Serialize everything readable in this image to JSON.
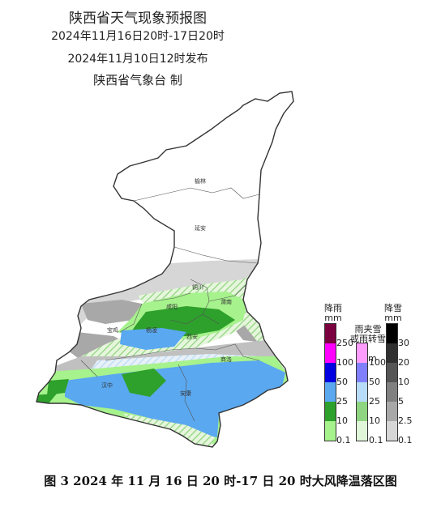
{
  "header": {
    "title": "陕西省天气现象预报图",
    "period": "2024年11月16日20时-17日20时",
    "issued": "2024年11月10日12时发布",
    "agency": "陕西省气象台 制"
  },
  "cities": {
    "yulin": "榆林",
    "yanan": "延安",
    "tongchuan": "铜川",
    "weinan": "渭南",
    "xianyang": "咸阳",
    "baoji": "宝鸡",
    "xian": "西安",
    "yangling": "杨凌",
    "shangluo": "商洛",
    "hanzhong": "汉中",
    "ankang": "安康"
  },
  "legend": {
    "rain": {
      "title": "降雨",
      "unit": "mm",
      "ticks": [
        "250",
        "100",
        "50",
        "25",
        "10",
        "0.1"
      ],
      "colors": [
        "#7a0040",
        "#ff00ff",
        "#0000e0",
        "#5aa8f0",
        "#2ea02c",
        "#a6f28c"
      ]
    },
    "sleet": {
      "title": "雨夹雪\n或雨转雪",
      "unit": "mm",
      "ticks": [
        "100",
        "50",
        "25",
        "10",
        "0.1"
      ],
      "colors": [
        "#ff9cff",
        "#8080ff",
        "#b8dcf8",
        "#8fd480",
        "#e0f6d8"
      ]
    },
    "snow": {
      "title": "降雪",
      "unit": "mm",
      "ticks": [
        "30",
        "20",
        "10",
        "5",
        "2.5",
        "0.1"
      ],
      "colors": [
        "#000000",
        "#303030",
        "#555555",
        "#808080",
        "#a8a8a8",
        "#d6d6d6"
      ]
    }
  },
  "caption": "图 3 2024 年 11 月 16 日 20 时-17 日 20 时大风降温落区图"
}
